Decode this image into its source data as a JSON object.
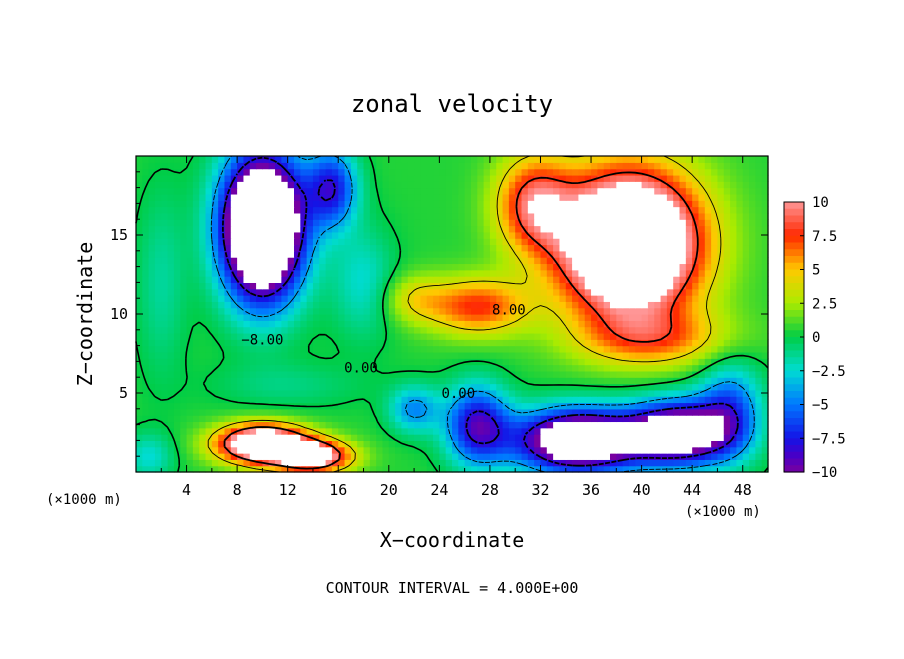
{
  "chart_data": {
    "type": "heatmap",
    "title": "zonal velocity",
    "xlabel": "X−coordinate",
    "ylabel": "Z−coordinate",
    "x_unit_left": "(×1000 m)",
    "x_unit_right": "(×1000 m)",
    "xlim": [
      0,
      50
    ],
    "ylim": [
      0,
      20
    ],
    "x_ticks": [
      4,
      8,
      12,
      16,
      20,
      24,
      28,
      32,
      36,
      40,
      44,
      48
    ],
    "y_ticks": [
      5,
      10,
      15
    ],
    "colorbar": {
      "min": -10,
      "max": 10,
      "tick_values": [
        10,
        7.5,
        5,
        2.5,
        0,
        -2.5,
        -5,
        -7.5,
        -10
      ],
      "tick_labels": [
        "10",
        "7.5",
        "5",
        "2.5",
        "0",
        "−2.5",
        "−5",
        "−7.5",
        "−10"
      ]
    },
    "contour_labels": [
      {
        "text": "−8.00",
        "x": 10,
        "z": 8.4
      },
      {
        "text": "0.00",
        "x": 17.8,
        "z": 6.6
      },
      {
        "text": "0.00",
        "x": 25.5,
        "z": 5.0
      },
      {
        "text": "8.00",
        "x": 29.5,
        "z": 10.3
      }
    ],
    "footer": "CONTOUR INTERVAL = 4.000E+00",
    "field": {
      "base": 0.5,
      "features": [
        {
          "x": 10,
          "z": 15.5,
          "sx": 3.2,
          "sz": 4.5,
          "a": -22
        },
        {
          "x": 15.5,
          "z": 18,
          "sx": 2.0,
          "sz": 2.5,
          "a": -8
        },
        {
          "x": 18,
          "z": 12,
          "sx": 2.5,
          "sz": 3.5,
          "a": -3
        },
        {
          "x": 39,
          "z": 14.5,
          "sx": 5.5,
          "sz": 4.5,
          "a": 20
        },
        {
          "x": 31.5,
          "z": 17,
          "sx": 3.0,
          "sz": 3.0,
          "a": 8
        },
        {
          "x": 27,
          "z": 10.5,
          "sx": 4.0,
          "sz": 1.8,
          "a": 7
        },
        {
          "x": 22,
          "z": 11,
          "sx": 2.5,
          "sz": 1.5,
          "a": 3
        },
        {
          "x": 41,
          "z": 8.5,
          "sx": 6.0,
          "sz": 1.8,
          "a": 5
        },
        {
          "x": 35,
          "z": 2.0,
          "sx": 5.0,
          "sz": 2.0,
          "a": -16
        },
        {
          "x": 43,
          "z": 2.5,
          "sx": 4.0,
          "sz": 2.0,
          "a": -14
        },
        {
          "x": 27,
          "z": 3.0,
          "sx": 2.5,
          "sz": 2.5,
          "a": -9
        },
        {
          "x": 22,
          "z": 4.0,
          "sx": 2.0,
          "sz": 1.5,
          "a": -5
        },
        {
          "x": 10,
          "z": 1.8,
          "sx": 3.5,
          "sz": 1.2,
          "a": 16
        },
        {
          "x": 14,
          "z": 1.0,
          "sx": 3.0,
          "sz": 1.0,
          "a": 12
        },
        {
          "x": 12,
          "z": 5.5,
          "sx": 6.0,
          "sz": 1.5,
          "a": -1.5
        },
        {
          "x": 2,
          "z": 12,
          "sx": 2.0,
          "sz": 6.0,
          "a": -2
        },
        {
          "x": 47,
          "z": 4.0,
          "sx": 2.5,
          "sz": 3.0,
          "a": -6
        },
        {
          "x": 1,
          "z": 1.0,
          "sx": 2.0,
          "sz": 1.5,
          "a": -3
        }
      ]
    }
  }
}
